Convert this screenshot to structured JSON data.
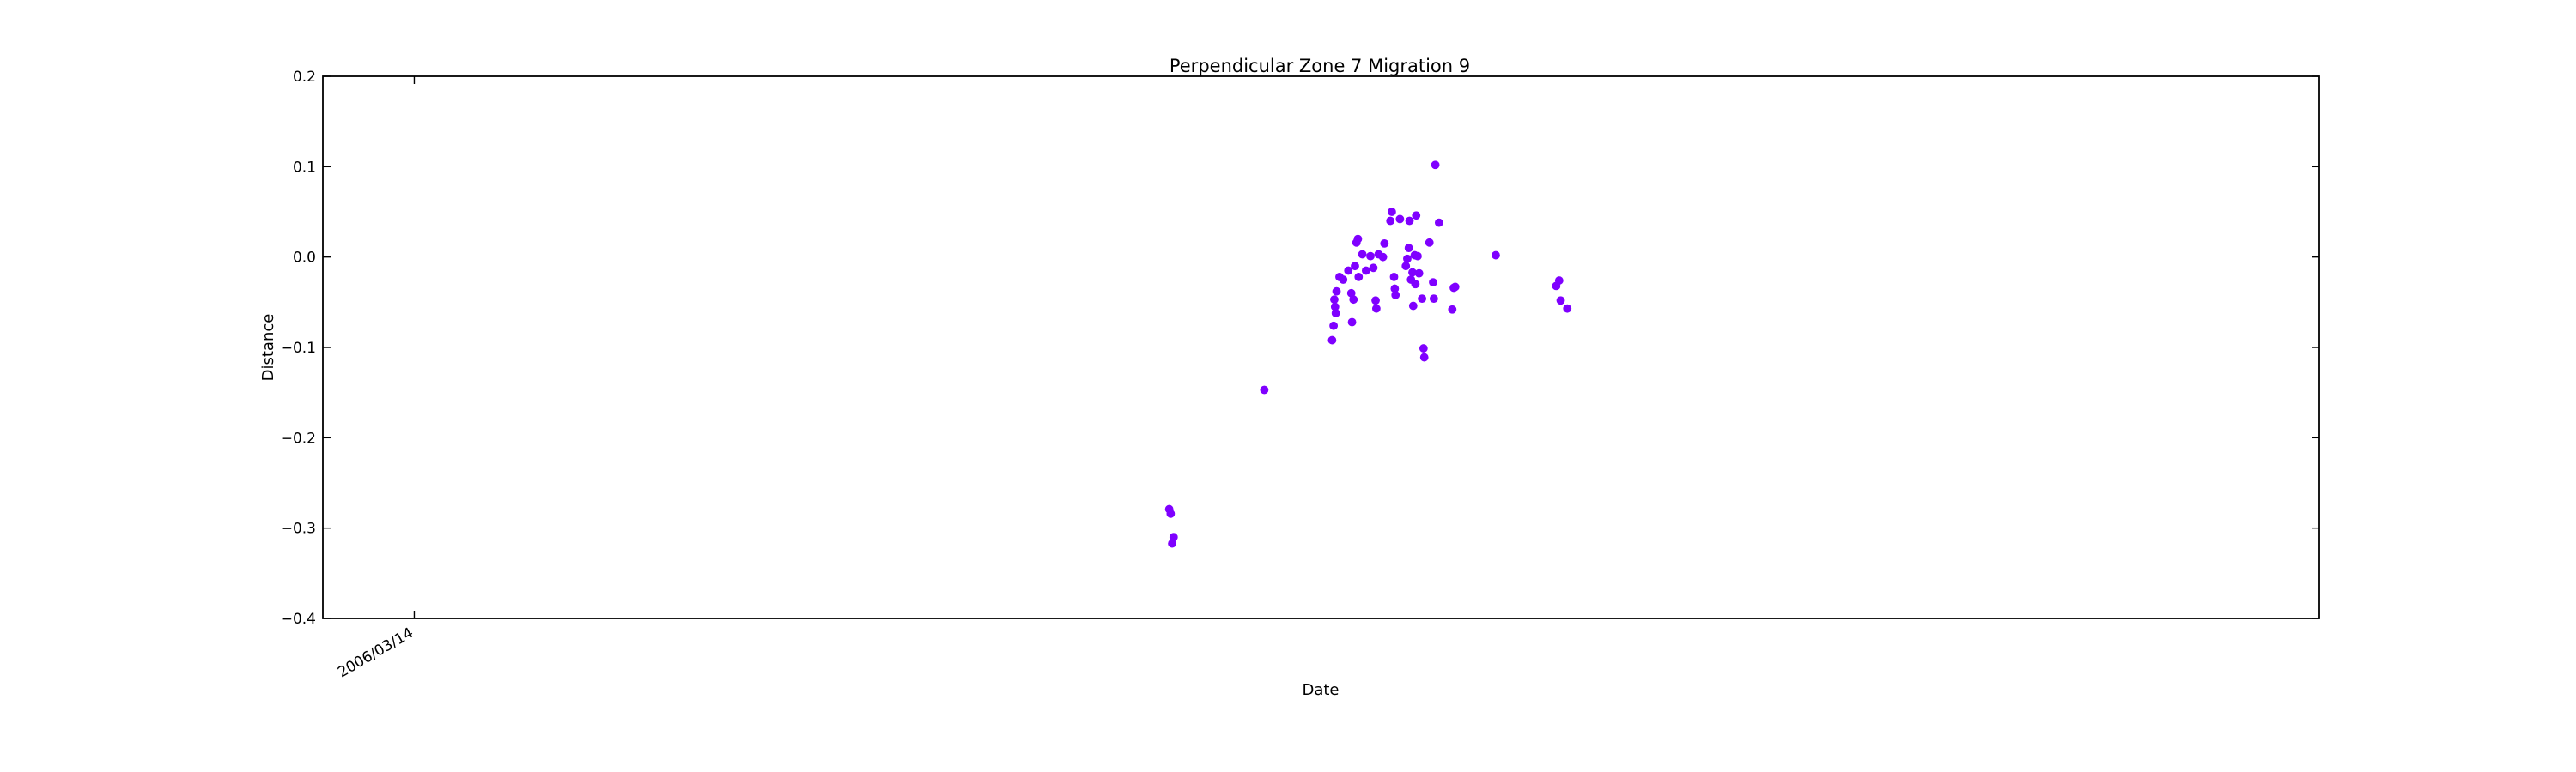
{
  "chart_data": {
    "type": "scatter",
    "title": "Perpendicular Zone 7 Migration 9",
    "xlabel": "Date",
    "ylabel": "Distance",
    "ylim": [
      -0.4,
      0.2
    ],
    "yticks": [
      -0.4,
      -0.3,
      -0.2,
      -0.1,
      0.0,
      0.1,
      0.2
    ],
    "ytick_labels": [
      "−0.4",
      "−0.3",
      "−0.2",
      "−0.1",
      "0.0",
      "0.1",
      "0.2"
    ],
    "xlim": [
      "2005/11/10",
      "2013/04/10"
    ],
    "xticks": [
      "2006/03/14"
    ],
    "xtick_labels": [
      "2006/03/14"
    ],
    "grid": false,
    "marker_color": "#7f00ff",
    "series": [
      {
        "points": [
          {
            "x": "2009/01/01",
            "y": -0.279
          },
          {
            "x": "2009/01/03",
            "y": -0.284
          },
          {
            "x": "2009/01/07",
            "y": -0.31
          },
          {
            "x": "2009/01/05",
            "y": -0.317
          },
          {
            "x": "2009/05/10",
            "y": -0.147
          },
          {
            "x": "2009/08/10",
            "y": -0.092
          },
          {
            "x": "2009/08/12",
            "y": -0.076
          },
          {
            "x": "2009/08/15",
            "y": -0.062
          },
          {
            "x": "2009/08/14",
            "y": -0.055
          },
          {
            "x": "2009/08/13",
            "y": -0.047
          },
          {
            "x": "2009/08/16",
            "y": -0.038
          },
          {
            "x": "2009/08/20",
            "y": -0.022
          },
          {
            "x": "2009/08/25",
            "y": -0.025
          },
          {
            "x": "2009/09/01",
            "y": -0.015
          },
          {
            "x": "2009/09/05",
            "y": -0.04
          },
          {
            "x": "2009/09/08",
            "y": -0.047
          },
          {
            "x": "2009/09/06",
            "y": -0.072
          },
          {
            "x": "2009/09/10",
            "y": -0.01
          },
          {
            "x": "2009/09/12",
            "y": 0.016
          },
          {
            "x": "2009/09/14",
            "y": 0.02
          },
          {
            "x": "2009/09/15",
            "y": -0.022
          },
          {
            "x": "2009/09/20",
            "y": 0.003
          },
          {
            "x": "2009/09/25",
            "y": -0.015
          },
          {
            "x": "2009/10/01",
            "y": 0.001
          },
          {
            "x": "2009/10/05",
            "y": -0.012
          },
          {
            "x": "2009/10/08",
            "y": -0.048
          },
          {
            "x": "2009/10/09",
            "y": -0.057
          },
          {
            "x": "2009/10/12",
            "y": 0.003
          },
          {
            "x": "2009/10/18",
            "y": 0.0
          },
          {
            "x": "2009/10/20",
            "y": 0.015
          },
          {
            "x": "2009/10/28",
            "y": 0.04
          },
          {
            "x": "2009/10/30",
            "y": 0.05
          },
          {
            "x": "2009/11/02",
            "y": -0.022
          },
          {
            "x": "2009/11/03",
            "y": -0.035
          },
          {
            "x": "2009/11/04",
            "y": -0.042
          },
          {
            "x": "2009/11/10",
            "y": 0.042
          },
          {
            "x": "2009/11/18",
            "y": -0.01
          },
          {
            "x": "2009/11/20",
            "y": -0.002
          },
          {
            "x": "2009/11/22",
            "y": 0.01
          },
          {
            "x": "2009/11/23",
            "y": 0.04
          },
          {
            "x": "2009/11/25",
            "y": -0.025
          },
          {
            "x": "2009/11/27",
            "y": -0.017
          },
          {
            "x": "2009/11/28",
            "y": -0.054
          },
          {
            "x": "2009/11/30",
            "y": 0.002
          },
          {
            "x": "2009/12/01",
            "y": -0.03
          },
          {
            "x": "2009/12/02",
            "y": 0.046
          },
          {
            "x": "2009/12/04",
            "y": 0.001
          },
          {
            "x": "2009/12/06",
            "y": -0.018
          },
          {
            "x": "2009/12/10",
            "y": -0.046
          },
          {
            "x": "2009/12/12",
            "y": -0.101
          },
          {
            "x": "2009/12/13",
            "y": -0.111
          },
          {
            "x": "2009/12/20",
            "y": 0.016
          },
          {
            "x": "2009/12/25",
            "y": -0.028
          },
          {
            "x": "2009/12/26",
            "y": -0.046
          },
          {
            "x": "2009/12/28",
            "y": 0.102
          },
          {
            "x": "2010/01/02",
            "y": 0.038
          },
          {
            "x": "2010/01/20",
            "y": -0.058
          },
          {
            "x": "2010/01/22",
            "y": -0.034
          },
          {
            "x": "2010/01/24",
            "y": -0.033
          },
          {
            "x": "2010/03/20",
            "y": 0.002
          },
          {
            "x": "2010/06/10",
            "y": -0.032
          },
          {
            "x": "2010/06/14",
            "y": -0.026
          },
          {
            "x": "2010/06/16",
            "y": -0.048
          },
          {
            "x": "2010/06/25",
            "y": -0.057
          }
        ]
      }
    ]
  }
}
